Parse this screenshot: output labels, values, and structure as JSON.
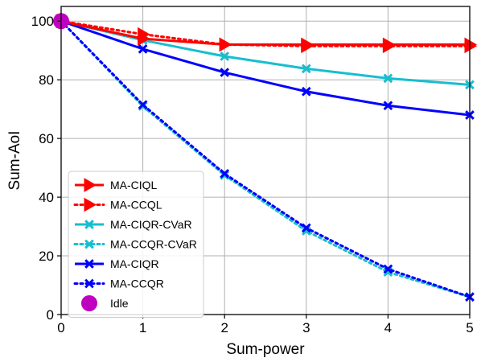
{
  "chart_data": {
    "type": "line",
    "xlabel": "Sum-power",
    "ylabel": "Sum-AoI",
    "xlim": [
      0,
      5
    ],
    "ylim": [
      0,
      105
    ],
    "xticks": [
      0,
      1,
      2,
      3,
      4,
      5
    ],
    "yticks": [
      0,
      20,
      40,
      60,
      80,
      100
    ],
    "grid": true,
    "legend_position": "lower-left",
    "series": [
      {
        "name": "MA-CIQL",
        "color": "#ff0000",
        "linestyle": "solid",
        "marker": "triangle-right",
        "x": [
          0,
          1,
          2,
          3,
          4,
          5
        ],
        "values": [
          100,
          94,
          92,
          92,
          92,
          92
        ]
      },
      {
        "name": "MA-CCQL",
        "color": "#ff0000",
        "linestyle": "dotted",
        "marker": "triangle-right",
        "x": [
          0,
          1,
          2,
          3,
          4,
          5
        ],
        "values": [
          100,
          95.5,
          92,
          91.5,
          91.5,
          91.5
        ]
      },
      {
        "name": "MA-CIQR-CVaR",
        "color": "#17becf",
        "linestyle": "solid",
        "marker": "x",
        "x": [
          0,
          1,
          2,
          3,
          4,
          5
        ],
        "values": [
          100,
          93.5,
          88,
          83.8,
          80.5,
          78.3
        ]
      },
      {
        "name": "MA-CCQR-CVaR",
        "color": "#17becf",
        "linestyle": "dotted",
        "marker": "x",
        "x": [
          0,
          1,
          2,
          3,
          4,
          5
        ],
        "values": [
          100,
          71,
          47.5,
          28.5,
          14.5,
          6
        ]
      },
      {
        "name": "MA-CIQR",
        "color": "#0000ff",
        "linestyle": "solid",
        "marker": "x",
        "x": [
          0,
          1,
          2,
          3,
          4,
          5
        ],
        "values": [
          100,
          90.5,
          82.5,
          76,
          71.2,
          68
        ]
      },
      {
        "name": "MA-CCQR",
        "color": "#0000ff",
        "linestyle": "dotted",
        "marker": "x",
        "x": [
          0,
          1,
          2,
          3,
          4,
          5
        ],
        "values": [
          100,
          71.5,
          48,
          29.5,
          15.5,
          6
        ]
      },
      {
        "name": "Idle",
        "color": "#c000c0",
        "linestyle": "none",
        "marker": "circle",
        "x": [
          0
        ],
        "values": [
          100
        ]
      }
    ]
  }
}
